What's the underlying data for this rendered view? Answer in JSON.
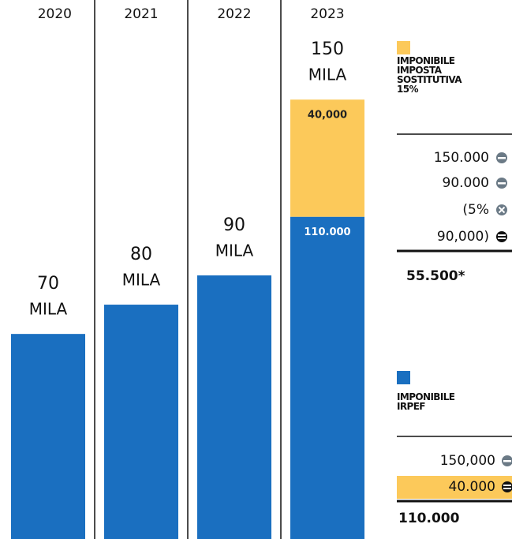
{
  "chart_data": {
    "type": "bar",
    "stacked": true,
    "categories": [
      "2020",
      "2021",
      "2022",
      "2023"
    ],
    "series": [
      {
        "name": "IMPONIBILE IRPEF",
        "color": "#1a6fc0",
        "values": [
          70,
          80,
          90,
          110
        ],
        "value_labels": [
          null,
          null,
          null,
          "110.000"
        ]
      },
      {
        "name": "IMPONIBILE IMPOSTA SOSTITUTIVA 15%",
        "color": "#fcc95a",
        "values": [
          null,
          null,
          null,
          40
        ],
        "value_labels": [
          null,
          null,
          null,
          "40,000"
        ]
      }
    ],
    "total_labels": [
      "70",
      "80",
      "90",
      "150"
    ],
    "unit_label": "MILA",
    "ylim": [
      0,
      184
    ]
  },
  "panel": {
    "sostitutiva": {
      "lines": [
        "150.000",
        "90.000",
        "(5%",
        "90,000)"
      ],
      "result": "55.500*"
    },
    "irpef": {
      "lines": [
        "150,000",
        "40.000"
      ],
      "result": "110.000"
    }
  }
}
